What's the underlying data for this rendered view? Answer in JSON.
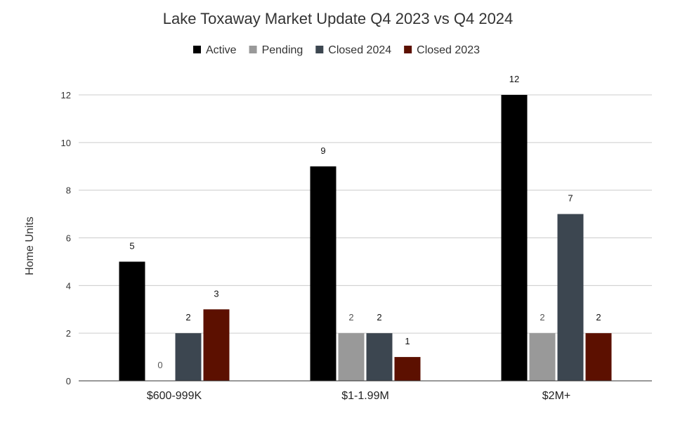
{
  "chart_data": {
    "type": "bar",
    "title": "Lake Toxaway Market Update Q4 2023 vs Q4 2024",
    "xlabel": "",
    "ylabel": "Home Units",
    "ylim": [
      0,
      12
    ],
    "yticks": [
      0,
      2,
      4,
      6,
      8,
      10,
      12
    ],
    "grid": true,
    "legend_position": "top",
    "categories": [
      "$600-999K",
      "$1-1.99M",
      "$2M+"
    ],
    "series": [
      {
        "name": "Active",
        "color": "#000000",
        "values": [
          5,
          9,
          12
        ]
      },
      {
        "name": "Pending",
        "color": "#999999",
        "values": [
          0,
          2,
          2
        ]
      },
      {
        "name": "Closed 2024",
        "color": "#3c4650",
        "values": [
          2,
          2,
          7
        ]
      },
      {
        "name": "Closed 2023",
        "color": "#5c1000",
        "values": [
          3,
          1,
          2
        ]
      }
    ]
  }
}
